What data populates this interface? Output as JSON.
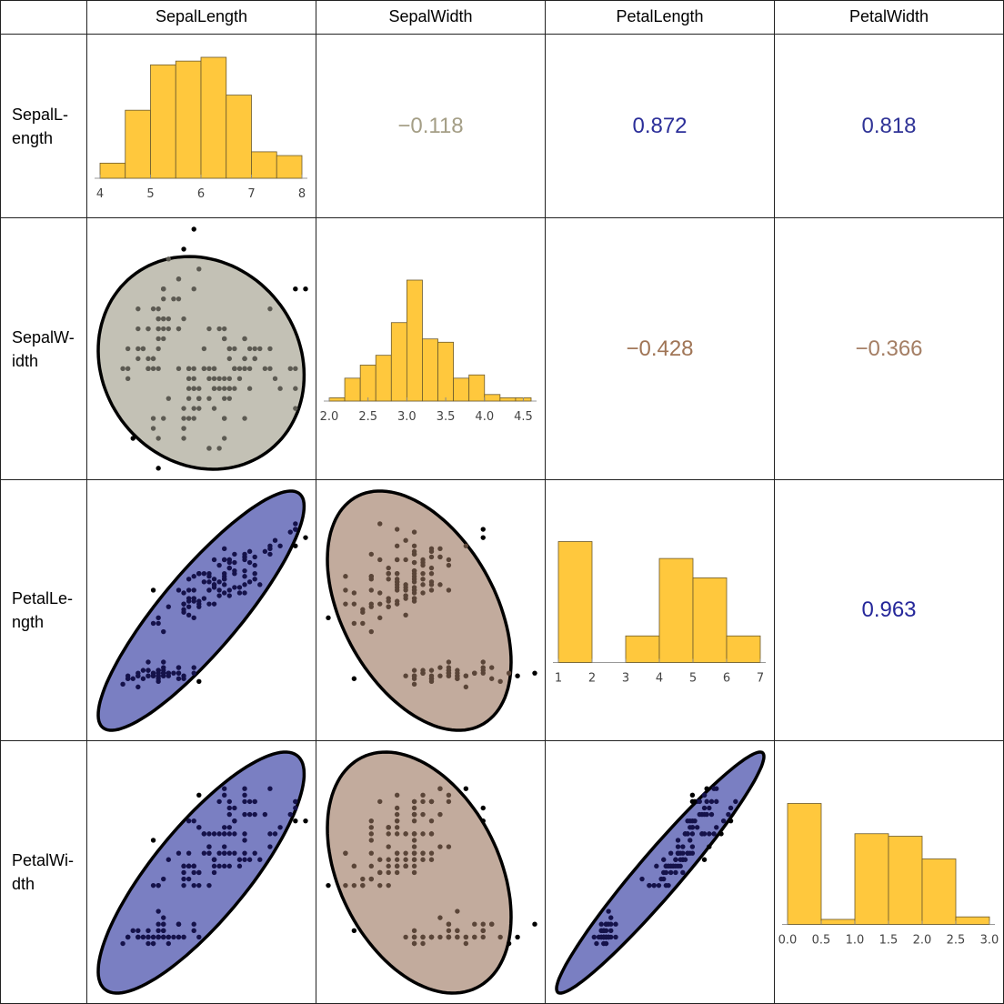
{
  "columns": [
    "SepalLength",
    "SepalWidth",
    "PetalLength",
    "PetalWidth"
  ],
  "row_labels": [
    [
      "SepalL-",
      "ength"
    ],
    [
      "SepalW-",
      "idth"
    ],
    [
      "PetalLe-",
      "ngth"
    ],
    [
      "PetalWi-",
      "dth"
    ]
  ],
  "colors": {
    "histogram_bar": "#ffc83d",
    "histogram_edge": "#6b5a2e",
    "positive": {
      "fill": "#7a7fc2",
      "dot": "#15124a"
    },
    "weak": {
      "fill": "#c3c1b5",
      "dot": "#5c5a52"
    },
    "negative": {
      "fill": "#c2ab9d",
      "dot": "#5a4538"
    },
    "outlier_dot": "#000000"
  },
  "chart_data": {
    "type": "scatter-matrix",
    "variables": [
      "SepalLength",
      "SepalWidth",
      "PetalLength",
      "PetalWidth"
    ],
    "correlations": [
      {
        "row": 0,
        "col": 1,
        "value": -0.118,
        "label": "−0.118",
        "color": "#a49e86"
      },
      {
        "row": 0,
        "col": 2,
        "value": 0.872,
        "label": "0.872",
        "color": "#2b2e99"
      },
      {
        "row": 0,
        "col": 3,
        "value": 0.818,
        "label": "0.818",
        "color": "#2f3396"
      },
      {
        "row": 1,
        "col": 2,
        "value": -0.428,
        "label": "−0.428",
        "color": "#a07556"
      },
      {
        "row": 1,
        "col": 3,
        "value": -0.366,
        "label": "−0.366",
        "color": "#a47e64"
      },
      {
        "row": 2,
        "col": 3,
        "value": 0.963,
        "label": "0.963",
        "color": "#25279a"
      }
    ],
    "histograms": [
      {
        "variable": "SepalLength",
        "bin_start": 4,
        "bin_end": 8,
        "bin_width": 0.5,
        "ticks": [
          "4",
          "5",
          "6",
          "7",
          "8"
        ]
      },
      {
        "variable": "SepalWidth",
        "bin_start": 2.0,
        "bin_end": 4.6,
        "bin_width": 0.2,
        "ticks": [
          "2.0",
          "2.5",
          "3.0",
          "3.5",
          "4.0",
          "4.5"
        ]
      },
      {
        "variable": "PetalLength",
        "bin_start": 1,
        "bin_end": 7,
        "bin_width": 1,
        "ticks": [
          "1",
          "2",
          "3",
          "4",
          "5",
          "6",
          "7"
        ]
      },
      {
        "variable": "PetalWidth",
        "bin_start": 0,
        "bin_end": 3,
        "bin_width": 0.5,
        "ticks": [
          "0.0",
          "0.5",
          "1.0",
          "1.5",
          "2.0",
          "2.5",
          "3.0"
        ]
      }
    ],
    "rows": [
      [
        5.1,
        3.5,
        1.4,
        0.2
      ],
      [
        4.9,
        3.0,
        1.4,
        0.2
      ],
      [
        4.7,
        3.2,
        1.3,
        0.2
      ],
      [
        4.6,
        3.1,
        1.5,
        0.2
      ],
      [
        5.0,
        3.6,
        1.4,
        0.2
      ],
      [
        5.4,
        3.9,
        1.7,
        0.4
      ],
      [
        4.6,
        3.4,
        1.4,
        0.3
      ],
      [
        5.0,
        3.4,
        1.5,
        0.2
      ],
      [
        4.4,
        2.9,
        1.4,
        0.2
      ],
      [
        4.9,
        3.1,
        1.5,
        0.1
      ],
      [
        5.4,
        3.7,
        1.5,
        0.2
      ],
      [
        4.8,
        3.4,
        1.6,
        0.2
      ],
      [
        4.8,
        3.0,
        1.4,
        0.1
      ],
      [
        4.3,
        3.0,
        1.1,
        0.1
      ],
      [
        5.8,
        4.0,
        1.2,
        0.2
      ],
      [
        5.7,
        4.4,
        1.5,
        0.4
      ],
      [
        5.4,
        3.9,
        1.3,
        0.4
      ],
      [
        5.1,
        3.5,
        1.4,
        0.3
      ],
      [
        5.7,
        3.8,
        1.7,
        0.3
      ],
      [
        5.1,
        3.8,
        1.5,
        0.3
      ],
      [
        5.4,
        3.4,
        1.7,
        0.2
      ],
      [
        5.1,
        3.7,
        1.5,
        0.4
      ],
      [
        4.6,
        3.6,
        1.0,
        0.2
      ],
      [
        5.1,
        3.3,
        1.7,
        0.5
      ],
      [
        4.8,
        3.4,
        1.9,
        0.2
      ],
      [
        5.0,
        3.0,
        1.6,
        0.2
      ],
      [
        5.0,
        3.4,
        1.6,
        0.4
      ],
      [
        5.2,
        3.5,
        1.5,
        0.2
      ],
      [
        5.2,
        3.4,
        1.4,
        0.2
      ],
      [
        4.7,
        3.2,
        1.6,
        0.2
      ],
      [
        4.8,
        3.1,
        1.6,
        0.2
      ],
      [
        5.4,
        3.4,
        1.5,
        0.4
      ],
      [
        5.2,
        4.1,
        1.5,
        0.1
      ],
      [
        5.5,
        4.2,
        1.4,
        0.2
      ],
      [
        4.9,
        3.1,
        1.5,
        0.2
      ],
      [
        5.0,
        3.2,
        1.2,
        0.2
      ],
      [
        5.5,
        3.5,
        1.3,
        0.2
      ],
      [
        4.9,
        3.6,
        1.4,
        0.1
      ],
      [
        4.4,
        3.0,
        1.3,
        0.2
      ],
      [
        5.1,
        3.4,
        1.5,
        0.2
      ],
      [
        5.0,
        3.5,
        1.3,
        0.3
      ],
      [
        4.5,
        2.3,
        1.3,
        0.3
      ],
      [
        4.4,
        3.2,
        1.3,
        0.2
      ],
      [
        5.0,
        3.5,
        1.6,
        0.6
      ],
      [
        5.1,
        3.8,
        1.9,
        0.4
      ],
      [
        4.8,
        3.0,
        1.4,
        0.3
      ],
      [
        5.1,
        3.8,
        1.6,
        0.2
      ],
      [
        4.6,
        3.2,
        1.4,
        0.2
      ],
      [
        5.3,
        3.7,
        1.5,
        0.2
      ],
      [
        5.0,
        3.3,
        1.4,
        0.2
      ],
      [
        7.0,
        3.2,
        4.7,
        1.4
      ],
      [
        6.4,
        3.2,
        4.5,
        1.5
      ],
      [
        6.9,
        3.1,
        4.9,
        1.5
      ],
      [
        5.5,
        2.3,
        4.0,
        1.3
      ],
      [
        6.5,
        2.8,
        4.6,
        1.5
      ],
      [
        5.7,
        2.8,
        4.5,
        1.3
      ],
      [
        6.3,
        3.3,
        4.7,
        1.6
      ],
      [
        4.9,
        2.4,
        3.3,
        1.0
      ],
      [
        6.6,
        2.9,
        4.6,
        1.3
      ],
      [
        5.2,
        2.7,
        3.9,
        1.4
      ],
      [
        5.0,
        2.0,
        3.5,
        1.0
      ],
      [
        5.9,
        3.0,
        4.2,
        1.5
      ],
      [
        6.0,
        2.2,
        4.0,
        1.0
      ],
      [
        6.1,
        2.9,
        4.7,
        1.4
      ],
      [
        5.6,
        2.9,
        3.6,
        1.3
      ],
      [
        6.7,
        3.1,
        4.4,
        1.4
      ],
      [
        5.6,
        3.0,
        4.5,
        1.5
      ],
      [
        5.8,
        2.7,
        4.1,
        1.0
      ],
      [
        6.2,
        2.2,
        4.5,
        1.5
      ],
      [
        5.6,
        2.5,
        3.9,
        1.1
      ],
      [
        5.9,
        3.2,
        4.8,
        1.8
      ],
      [
        6.1,
        2.8,
        4.0,
        1.3
      ],
      [
        6.3,
        2.5,
        4.9,
        1.5
      ],
      [
        6.1,
        2.8,
        4.7,
        1.2
      ],
      [
        6.4,
        2.9,
        4.3,
        1.3
      ],
      [
        6.6,
        3.0,
        4.4,
        1.4
      ],
      [
        6.8,
        2.8,
        4.8,
        1.4
      ],
      [
        6.7,
        3.0,
        5.0,
        1.7
      ],
      [
        6.0,
        2.9,
        4.5,
        1.5
      ],
      [
        5.7,
        2.6,
        3.5,
        1.0
      ],
      [
        5.5,
        2.4,
        3.8,
        1.1
      ],
      [
        5.5,
        2.4,
        3.7,
        1.0
      ],
      [
        5.8,
        2.7,
        3.9,
        1.2
      ],
      [
        6.0,
        2.7,
        5.1,
        1.6
      ],
      [
        5.4,
        3.0,
        4.5,
        1.5
      ],
      [
        6.0,
        3.4,
        4.5,
        1.6
      ],
      [
        6.7,
        3.1,
        4.7,
        1.5
      ],
      [
        6.3,
        2.3,
        4.4,
        1.3
      ],
      [
        5.6,
        3.0,
        4.1,
        1.3
      ],
      [
        5.5,
        2.5,
        4.0,
        1.3
      ],
      [
        5.5,
        2.6,
        4.4,
        1.2
      ],
      [
        6.1,
        3.0,
        4.6,
        1.4
      ],
      [
        5.8,
        2.6,
        4.0,
        1.2
      ],
      [
        5.0,
        2.3,
        3.3,
        1.0
      ],
      [
        5.6,
        2.7,
        4.2,
        1.3
      ],
      [
        5.7,
        3.0,
        4.2,
        1.2
      ],
      [
        5.7,
        2.9,
        4.2,
        1.3
      ],
      [
        6.2,
        2.9,
        4.3,
        1.3
      ],
      [
        5.1,
        2.5,
        3.0,
        1.1
      ],
      [
        5.7,
        2.8,
        4.1,
        1.3
      ],
      [
        6.3,
        3.3,
        6.0,
        2.5
      ],
      [
        5.8,
        2.7,
        5.1,
        1.9
      ],
      [
        7.1,
        3.0,
        5.9,
        2.1
      ],
      [
        6.3,
        2.9,
        5.6,
        1.8
      ],
      [
        6.5,
        3.0,
        5.8,
        2.2
      ],
      [
        7.6,
        3.0,
        6.6,
        2.1
      ],
      [
        4.9,
        2.5,
        4.5,
        1.7
      ],
      [
        7.3,
        2.9,
        6.3,
        1.8
      ],
      [
        6.7,
        2.5,
        5.8,
        1.8
      ],
      [
        7.2,
        3.6,
        6.1,
        2.5
      ],
      [
        6.5,
        3.2,
        5.1,
        2.0
      ],
      [
        6.4,
        2.7,
        5.3,
        1.9
      ],
      [
        6.8,
        3.0,
        5.5,
        2.1
      ],
      [
        5.7,
        2.5,
        5.0,
        2.0
      ],
      [
        5.8,
        2.8,
        5.1,
        2.4
      ],
      [
        6.4,
        3.2,
        5.3,
        2.3
      ],
      [
        6.5,
        3.0,
        5.5,
        1.8
      ],
      [
        7.7,
        3.8,
        6.7,
        2.2
      ],
      [
        7.7,
        2.6,
        6.9,
        2.3
      ],
      [
        6.0,
        2.2,
        5.0,
        1.5
      ],
      [
        6.9,
        3.2,
        5.7,
        2.3
      ],
      [
        5.6,
        2.8,
        4.9,
        2.0
      ],
      [
        7.7,
        2.8,
        6.7,
        2.0
      ],
      [
        6.3,
        2.7,
        4.9,
        1.8
      ],
      [
        6.7,
        3.3,
        5.7,
        2.1
      ],
      [
        7.2,
        3.2,
        6.0,
        1.8
      ],
      [
        6.2,
        2.8,
        4.8,
        1.8
      ],
      [
        6.1,
        3.0,
        4.9,
        1.8
      ],
      [
        6.4,
        2.8,
        5.6,
        2.1
      ],
      [
        7.2,
        3.0,
        5.8,
        1.6
      ],
      [
        7.4,
        2.8,
        6.1,
        1.9
      ],
      [
        7.9,
        3.8,
        6.4,
        2.0
      ],
      [
        6.4,
        2.8,
        5.6,
        2.2
      ],
      [
        6.3,
        2.8,
        5.1,
        1.5
      ],
      [
        6.1,
        2.6,
        5.6,
        1.4
      ],
      [
        7.7,
        3.0,
        6.1,
        2.3
      ],
      [
        6.3,
        3.4,
        5.6,
        2.4
      ],
      [
        6.4,
        3.1,
        5.5,
        1.8
      ],
      [
        6.0,
        3.0,
        4.8,
        1.8
      ],
      [
        6.9,
        3.1,
        5.4,
        2.1
      ],
      [
        6.7,
        3.1,
        5.6,
        2.4
      ],
      [
        6.9,
        3.1,
        5.1,
        2.3
      ],
      [
        5.8,
        2.7,
        5.1,
        1.9
      ],
      [
        6.8,
        3.2,
        5.9,
        2.3
      ],
      [
        6.7,
        3.3,
        5.7,
        2.5
      ],
      [
        6.7,
        3.0,
        5.2,
        2.3
      ],
      [
        6.3,
        2.5,
        5.0,
        1.9
      ],
      [
        6.5,
        3.0,
        5.2,
        2.0
      ],
      [
        6.2,
        3.4,
        5.4,
        2.3
      ],
      [
        5.9,
        3.0,
        5.1,
        1.8
      ]
    ]
  }
}
